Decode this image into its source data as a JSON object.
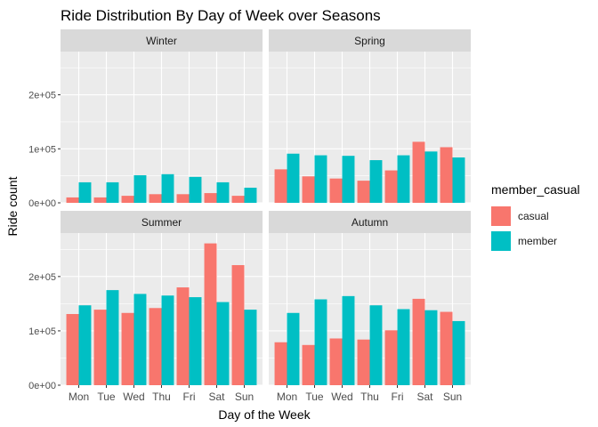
{
  "chart_data": {
    "type": "bar",
    "title": "Ride Distribution By Day of Week over Seasons",
    "xlabel": "Day of the Week",
    "ylabel": "Ride count",
    "categories": [
      "Mon",
      "Tue",
      "Wed",
      "Thu",
      "Fri",
      "Sat",
      "Sun"
    ],
    "ylim": [
      0,
      280000
    ],
    "y_ticks": [
      {
        "value": 0,
        "label": "0e+00"
      },
      {
        "value": 100000,
        "label": "1e+05"
      },
      {
        "value": 200000,
        "label": "2e+05"
      }
    ],
    "legend": {
      "title": "member_casual",
      "position": "right",
      "entries": [
        {
          "name": "casual",
          "color": "#F8766D"
        },
        {
          "name": "member",
          "color": "#00BFC4"
        }
      ]
    },
    "grid": true,
    "panels": [
      {
        "name": "Winter",
        "series": [
          {
            "name": "casual",
            "values": [
              10000,
              10000,
              13000,
              16000,
              16000,
              18000,
              13000
            ]
          },
          {
            "name": "member",
            "values": [
              38000,
              38000,
              51000,
              53000,
              48000,
              38000,
              28000
            ]
          }
        ]
      },
      {
        "name": "Spring",
        "series": [
          {
            "name": "casual",
            "values": [
              62000,
              49000,
              45000,
              41000,
              60000,
              113000,
              103000
            ]
          },
          {
            "name": "member",
            "values": [
              91000,
              88000,
              87000,
              79000,
              88000,
              95000,
              84000
            ]
          }
        ]
      },
      {
        "name": "Summer",
        "series": [
          {
            "name": "casual",
            "values": [
              131000,
              139000,
              133000,
              142000,
              180000,
              261000,
              221000
            ]
          },
          {
            "name": "member",
            "values": [
              147000,
              175000,
              168000,
              165000,
              162000,
              153000,
              139000
            ]
          }
        ]
      },
      {
        "name": "Autumn",
        "series": [
          {
            "name": "casual",
            "values": [
              79000,
              74000,
              86000,
              84000,
              101000,
              159000,
              135000
            ]
          },
          {
            "name": "member",
            "values": [
              133000,
              158000,
              164000,
              147000,
              140000,
              138000,
              118000
            ]
          }
        ]
      }
    ]
  }
}
